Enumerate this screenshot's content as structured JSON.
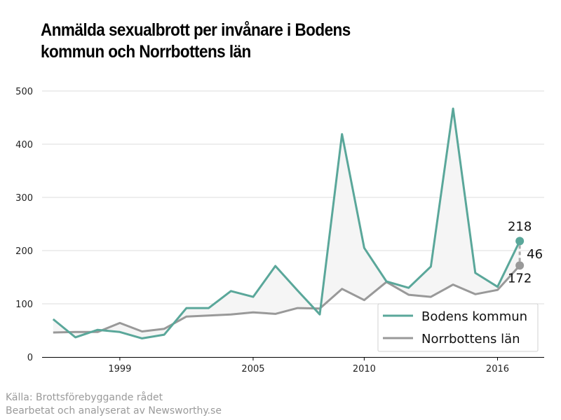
{
  "title_lines": [
    "Anmälda sexualbrott per invånare i Bodens",
    "kommun och Norrbottens län"
  ],
  "source_lines": [
    "Källa: Brottsförebyggande rådet",
    "Bearbetat och analyserat av Newsworthy.se"
  ],
  "colors": {
    "bodens": "#5aa79a",
    "norrbotten": "#999999",
    "fill": "#f5f5f5",
    "grid": "#dddddd"
  },
  "chart_data": {
    "type": "line",
    "x": [
      1996,
      1997,
      1998,
      1999,
      2000,
      2001,
      2002,
      2003,
      2004,
      2005,
      2006,
      2007,
      2008,
      2009,
      2010,
      2011,
      2012,
      2013,
      2014,
      2015,
      2016,
      2017
    ],
    "series": [
      {
        "name": "Bodens kommun",
        "values": [
          71,
          37,
          51,
          47,
          35,
          42,
          92,
          92,
          124,
          113,
          171,
          125,
          80,
          419,
          205,
          142,
          130,
          170,
          467,
          158,
          132,
          218
        ]
      },
      {
        "name": "Norrbottens län",
        "values": [
          46,
          47,
          47,
          64,
          48,
          53,
          76,
          78,
          80,
          84,
          81,
          92,
          91,
          128,
          107,
          141,
          117,
          113,
          136,
          118,
          126,
          172
        ]
      }
    ],
    "xticks": [
      1999,
      2005,
      2010,
      2016
    ],
    "yticks": [
      0,
      100,
      200,
      300,
      400,
      500
    ],
    "xlim": [
      1995.5,
      2018.1
    ],
    "ylim": [
      0,
      500
    ],
    "annotations": {
      "last_bodens": "218",
      "last_norrbotten": "172",
      "difference": "46"
    },
    "legend": {
      "position": "bottom-right",
      "entries": [
        "Bodens kommun",
        "Norrbottens län"
      ]
    },
    "grid": "horizontal"
  }
}
